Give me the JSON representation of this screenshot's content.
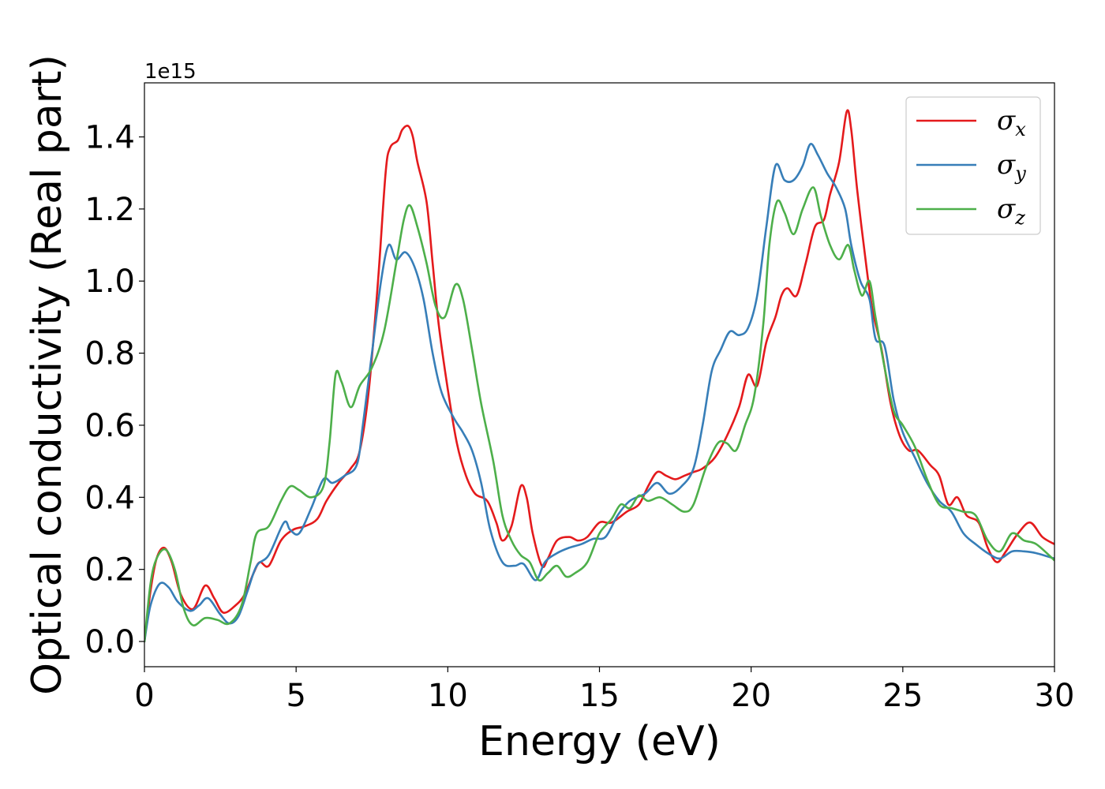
{
  "chart_data": {
    "type": "line",
    "xlabel": "Energy (eV)",
    "ylabel": "Optical conductivity (Real part)",
    "y_offset_label": "1e15",
    "xlim": [
      0,
      30
    ],
    "ylim": [
      -0.07,
      1.55
    ],
    "x_ticks": [
      0,
      5,
      10,
      15,
      20,
      25,
      30
    ],
    "y_ticks": [
      0.0,
      0.2,
      0.4,
      0.6,
      0.8,
      1.0,
      1.2,
      1.4
    ],
    "x_tick_labels": [
      "0",
      "5",
      "10",
      "15",
      "20",
      "25",
      "30"
    ],
    "y_tick_labels": [
      "0.0",
      "0.2",
      "0.4",
      "0.6",
      "0.8",
      "1.0",
      "1.2",
      "1.4"
    ],
    "grid": false,
    "legend_position": "top-right",
    "series": [
      {
        "name": "σx",
        "symbol": "σ",
        "subscript": "x",
        "color": "#e41a1c",
        "points": [
          [
            0,
            0
          ],
          [
            0.2,
            0.14
          ],
          [
            0.4,
            0.23
          ],
          [
            0.65,
            0.26
          ],
          [
            0.9,
            0.22
          ],
          [
            1.2,
            0.13
          ],
          [
            1.6,
            0.09
          ],
          [
            2.0,
            0.155
          ],
          [
            2.3,
            0.12
          ],
          [
            2.6,
            0.08
          ],
          [
            3.0,
            0.1
          ],
          [
            3.3,
            0.13
          ],
          [
            3.6,
            0.19
          ],
          [
            3.8,
            0.22
          ],
          [
            4.1,
            0.21
          ],
          [
            4.5,
            0.28
          ],
          [
            4.9,
            0.31
          ],
          [
            5.3,
            0.32
          ],
          [
            5.7,
            0.34
          ],
          [
            6.0,
            0.39
          ],
          [
            6.4,
            0.44
          ],
          [
            6.8,
            0.48
          ],
          [
            7.1,
            0.53
          ],
          [
            7.4,
            0.7
          ],
          [
            7.7,
            1.0
          ],
          [
            7.95,
            1.3
          ],
          [
            8.1,
            1.37
          ],
          [
            8.35,
            1.39
          ],
          [
            8.5,
            1.42
          ],
          [
            8.7,
            1.43
          ],
          [
            8.85,
            1.4
          ],
          [
            9.0,
            1.33
          ],
          [
            9.3,
            1.22
          ],
          [
            9.5,
            1.05
          ],
          [
            9.7,
            0.88
          ],
          [
            10.0,
            0.7
          ],
          [
            10.3,
            0.55
          ],
          [
            10.6,
            0.46
          ],
          [
            10.9,
            0.41
          ],
          [
            11.3,
            0.39
          ],
          [
            11.6,
            0.33
          ],
          [
            11.8,
            0.28
          ],
          [
            12.1,
            0.32
          ],
          [
            12.4,
            0.43
          ],
          [
            12.6,
            0.4
          ],
          [
            12.8,
            0.3
          ],
          [
            13.1,
            0.21
          ],
          [
            13.3,
            0.23
          ],
          [
            13.6,
            0.28
          ],
          [
            14.0,
            0.29
          ],
          [
            14.3,
            0.28
          ],
          [
            14.6,
            0.29
          ],
          [
            15.0,
            0.33
          ],
          [
            15.4,
            0.33
          ],
          [
            15.9,
            0.36
          ],
          [
            16.3,
            0.38
          ],
          [
            16.6,
            0.43
          ],
          [
            16.9,
            0.47
          ],
          [
            17.2,
            0.46
          ],
          [
            17.5,
            0.45
          ],
          [
            17.8,
            0.46
          ],
          [
            18.1,
            0.47
          ],
          [
            18.4,
            0.48
          ],
          [
            18.8,
            0.51
          ],
          [
            19.2,
            0.57
          ],
          [
            19.6,
            0.65
          ],
          [
            19.9,
            0.74
          ],
          [
            20.2,
            0.71
          ],
          [
            20.5,
            0.83
          ],
          [
            20.8,
            0.9
          ],
          [
            21.0,
            0.96
          ],
          [
            21.2,
            0.98
          ],
          [
            21.5,
            0.96
          ],
          [
            21.8,
            1.05
          ],
          [
            22.1,
            1.15
          ],
          [
            22.4,
            1.17
          ],
          [
            22.6,
            1.24
          ],
          [
            22.9,
            1.33
          ],
          [
            23.15,
            1.47
          ],
          [
            23.3,
            1.42
          ],
          [
            23.5,
            1.25
          ],
          [
            23.8,
            1.04
          ],
          [
            24.0,
            0.92
          ],
          [
            24.3,
            0.81
          ],
          [
            24.6,
            0.66
          ],
          [
            24.9,
            0.57
          ],
          [
            25.2,
            0.53
          ],
          [
            25.5,
            0.53
          ],
          [
            25.9,
            0.49
          ],
          [
            26.2,
            0.46
          ],
          [
            26.5,
            0.38
          ],
          [
            26.8,
            0.4
          ],
          [
            27.1,
            0.35
          ],
          [
            27.5,
            0.33
          ],
          [
            27.8,
            0.26
          ],
          [
            28.1,
            0.22
          ],
          [
            28.4,
            0.25
          ],
          [
            28.8,
            0.3
          ],
          [
            29.2,
            0.33
          ],
          [
            29.6,
            0.29
          ],
          [
            30.0,
            0.27
          ]
        ]
      },
      {
        "name": "σy",
        "symbol": "σ",
        "subscript": "y",
        "color": "#377eb8",
        "points": [
          [
            0,
            0
          ],
          [
            0.2,
            0.1
          ],
          [
            0.5,
            0.16
          ],
          [
            0.8,
            0.15
          ],
          [
            1.1,
            0.11
          ],
          [
            1.5,
            0.085
          ],
          [
            1.8,
            0.1
          ],
          [
            2.1,
            0.12
          ],
          [
            2.5,
            0.075
          ],
          [
            2.8,
            0.05
          ],
          [
            3.1,
            0.07
          ],
          [
            3.4,
            0.14
          ],
          [
            3.7,
            0.21
          ],
          [
            4.1,
            0.24
          ],
          [
            4.6,
            0.33
          ],
          [
            4.8,
            0.31
          ],
          [
            5.1,
            0.3
          ],
          [
            5.5,
            0.37
          ],
          [
            5.9,
            0.45
          ],
          [
            6.2,
            0.44
          ],
          [
            6.6,
            0.46
          ],
          [
            7.0,
            0.49
          ],
          [
            7.2,
            0.6
          ],
          [
            7.5,
            0.8
          ],
          [
            7.8,
            1.0
          ],
          [
            8.05,
            1.1
          ],
          [
            8.3,
            1.06
          ],
          [
            8.6,
            1.08
          ],
          [
            8.9,
            1.04
          ],
          [
            9.2,
            0.95
          ],
          [
            9.5,
            0.8
          ],
          [
            9.8,
            0.69
          ],
          [
            10.2,
            0.62
          ],
          [
            10.5,
            0.58
          ],
          [
            10.8,
            0.53
          ],
          [
            11.1,
            0.44
          ],
          [
            11.4,
            0.31
          ],
          [
            11.8,
            0.22
          ],
          [
            12.2,
            0.21
          ],
          [
            12.5,
            0.215
          ],
          [
            12.9,
            0.17
          ],
          [
            13.2,
            0.22
          ],
          [
            13.6,
            0.245
          ],
          [
            14.0,
            0.26
          ],
          [
            14.4,
            0.27
          ],
          [
            14.8,
            0.285
          ],
          [
            15.2,
            0.29
          ],
          [
            15.6,
            0.35
          ],
          [
            16.0,
            0.39
          ],
          [
            16.5,
            0.41
          ],
          [
            16.9,
            0.44
          ],
          [
            17.3,
            0.41
          ],
          [
            17.7,
            0.43
          ],
          [
            18.1,
            0.48
          ],
          [
            18.4,
            0.6
          ],
          [
            18.7,
            0.75
          ],
          [
            19.0,
            0.81
          ],
          [
            19.3,
            0.86
          ],
          [
            19.6,
            0.85
          ],
          [
            19.9,
            0.87
          ],
          [
            20.2,
            0.96
          ],
          [
            20.5,
            1.15
          ],
          [
            20.8,
            1.32
          ],
          [
            21.1,
            1.28
          ],
          [
            21.4,
            1.28
          ],
          [
            21.7,
            1.32
          ],
          [
            21.95,
            1.38
          ],
          [
            22.2,
            1.35
          ],
          [
            22.5,
            1.3
          ],
          [
            22.8,
            1.26
          ],
          [
            23.1,
            1.2
          ],
          [
            23.3,
            1.1
          ],
          [
            23.6,
            1.0
          ],
          [
            23.9,
            0.95
          ],
          [
            24.1,
            0.84
          ],
          [
            24.4,
            0.82
          ],
          [
            24.7,
            0.67
          ],
          [
            25.0,
            0.58
          ],
          [
            25.4,
            0.51
          ],
          [
            25.8,
            0.44
          ],
          [
            26.2,
            0.39
          ],
          [
            26.6,
            0.36
          ],
          [
            27.0,
            0.3
          ],
          [
            27.4,
            0.27
          ],
          [
            27.8,
            0.245
          ],
          [
            28.2,
            0.23
          ],
          [
            28.6,
            0.25
          ],
          [
            29.0,
            0.25
          ],
          [
            29.4,
            0.245
          ],
          [
            30.0,
            0.23
          ]
        ]
      },
      {
        "name": "σz",
        "symbol": "σ",
        "subscript": "z",
        "color": "#4daf4a",
        "points": [
          [
            0,
            0
          ],
          [
            0.2,
            0.16
          ],
          [
            0.4,
            0.23
          ],
          [
            0.7,
            0.255
          ],
          [
            1.0,
            0.2
          ],
          [
            1.3,
            0.09
          ],
          [
            1.6,
            0.045
          ],
          [
            2.0,
            0.065
          ],
          [
            2.4,
            0.06
          ],
          [
            2.8,
            0.05
          ],
          [
            3.2,
            0.1
          ],
          [
            3.5,
            0.22
          ],
          [
            3.7,
            0.3
          ],
          [
            4.1,
            0.32
          ],
          [
            4.5,
            0.39
          ],
          [
            4.8,
            0.43
          ],
          [
            5.1,
            0.42
          ],
          [
            5.5,
            0.4
          ],
          [
            5.9,
            0.43
          ],
          [
            6.1,
            0.55
          ],
          [
            6.3,
            0.74
          ],
          [
            6.5,
            0.72
          ],
          [
            6.8,
            0.65
          ],
          [
            7.1,
            0.71
          ],
          [
            7.5,
            0.76
          ],
          [
            7.9,
            0.86
          ],
          [
            8.3,
            1.05
          ],
          [
            8.55,
            1.17
          ],
          [
            8.75,
            1.21
          ],
          [
            9.0,
            1.15
          ],
          [
            9.3,
            1.05
          ],
          [
            9.6,
            0.93
          ],
          [
            9.9,
            0.9
          ],
          [
            10.25,
            0.99
          ],
          [
            10.5,
            0.95
          ],
          [
            10.8,
            0.81
          ],
          [
            11.1,
            0.66
          ],
          [
            11.5,
            0.5
          ],
          [
            11.8,
            0.35
          ],
          [
            12.1,
            0.28
          ],
          [
            12.4,
            0.24
          ],
          [
            12.7,
            0.22
          ],
          [
            13.0,
            0.17
          ],
          [
            13.3,
            0.19
          ],
          [
            13.6,
            0.21
          ],
          [
            13.9,
            0.18
          ],
          [
            14.2,
            0.19
          ],
          [
            14.6,
            0.22
          ],
          [
            15.0,
            0.3
          ],
          [
            15.4,
            0.34
          ],
          [
            15.7,
            0.38
          ],
          [
            16.0,
            0.37
          ],
          [
            16.3,
            0.405
          ],
          [
            16.6,
            0.39
          ],
          [
            17.0,
            0.4
          ],
          [
            17.4,
            0.38
          ],
          [
            17.8,
            0.36
          ],
          [
            18.1,
            0.38
          ],
          [
            18.5,
            0.48
          ],
          [
            18.9,
            0.55
          ],
          [
            19.2,
            0.55
          ],
          [
            19.5,
            0.53
          ],
          [
            19.8,
            0.6
          ],
          [
            20.1,
            0.68
          ],
          [
            20.4,
            0.88
          ],
          [
            20.6,
            1.1
          ],
          [
            20.85,
            1.22
          ],
          [
            21.1,
            1.19
          ],
          [
            21.4,
            1.13
          ],
          [
            21.7,
            1.2
          ],
          [
            22.05,
            1.26
          ],
          [
            22.3,
            1.18
          ],
          [
            22.6,
            1.1
          ],
          [
            22.9,
            1.06
          ],
          [
            23.2,
            1.1
          ],
          [
            23.4,
            1.03
          ],
          [
            23.65,
            0.96
          ],
          [
            23.9,
            1.0
          ],
          [
            24.1,
            0.9
          ],
          [
            24.4,
            0.76
          ],
          [
            24.7,
            0.64
          ],
          [
            25.0,
            0.6
          ],
          [
            25.4,
            0.54
          ],
          [
            25.8,
            0.45
          ],
          [
            26.2,
            0.38
          ],
          [
            26.6,
            0.37
          ],
          [
            27.0,
            0.36
          ],
          [
            27.4,
            0.35
          ],
          [
            27.8,
            0.28
          ],
          [
            28.2,
            0.25
          ],
          [
            28.6,
            0.3
          ],
          [
            29.0,
            0.28
          ],
          [
            29.4,
            0.27
          ],
          [
            30.0,
            0.225
          ]
        ]
      }
    ]
  }
}
